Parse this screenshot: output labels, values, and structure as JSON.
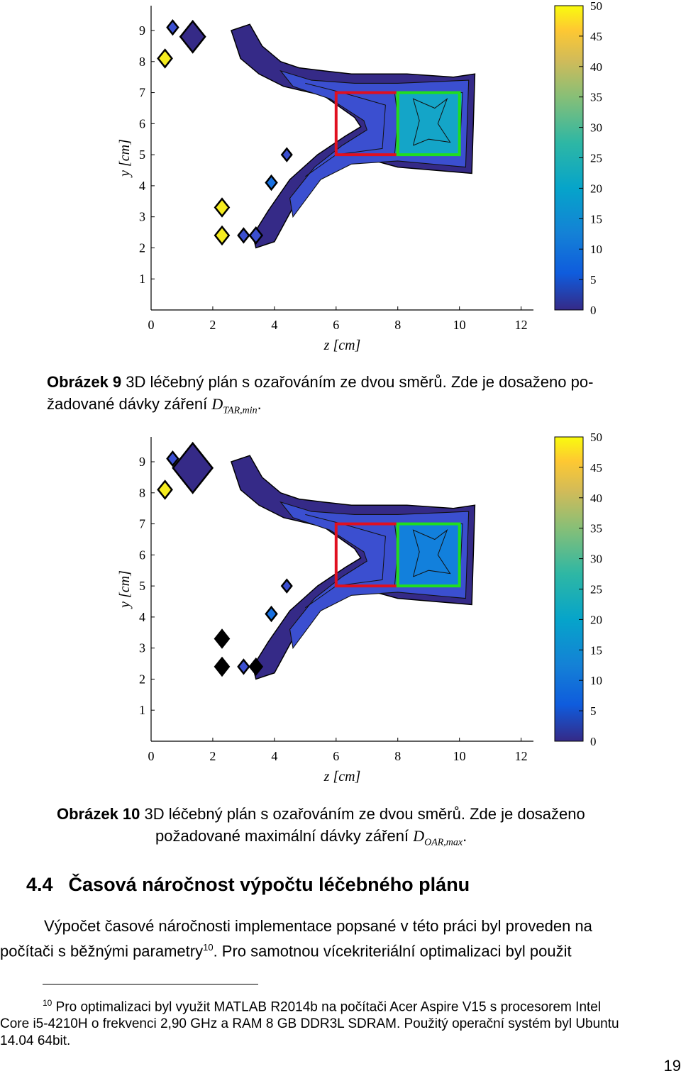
{
  "figures": [
    {
      "caption_label": "Obrázek 9",
      "caption_text_1": " 3D léčebný plán s ozařováním ze dvou směrů. Zde je dosaženo po-",
      "caption_text_2": "žadované dávky záření ",
      "caption_math_base": "D",
      "caption_math_sub": "TAR,min",
      "caption_end": ".",
      "chart_data": {
        "type": "heatmap",
        "xlabel": "z [cm]",
        "ylabel": "y [cm]",
        "xlim": [
          0,
          12.4
        ],
        "ylim": [
          0,
          9.8
        ],
        "xticks": [
          "0",
          "2",
          "4",
          "6",
          "8",
          "10",
          "12"
        ],
        "yticks": [
          "1",
          "2",
          "3",
          "4",
          "5",
          "6",
          "7",
          "8",
          "9"
        ],
        "colorbar": {
          "min": 0,
          "max": 50,
          "ticks": [
            "0",
            "5",
            "10",
            "15",
            "20",
            "25",
            "30",
            "35",
            "40",
            "45",
            "50"
          ]
        },
        "regions": [
          {
            "name": "red",
            "color": "#e01020",
            "z": [
              6,
              8
            ],
            "y": [
              5,
              7
            ]
          },
          {
            "name": "green",
            "color": "#20dd20",
            "z": [
              8,
              10
            ],
            "y": [
              5,
              7
            ]
          }
        ]
      }
    },
    {
      "caption_label": "Obrázek 10",
      "caption_text_1": " 3D léčebný plán s ozařováním ze dvou směrů. Zde je dosaženo",
      "caption_text_2": "požadované maximální dávky záření ",
      "caption_math_base": "D",
      "caption_math_sub": "OAR,max",
      "caption_end": ".",
      "chart_data": {
        "type": "heatmap",
        "xlabel": "z [cm]",
        "ylabel": "y [cm]",
        "xlim": [
          0,
          12.4
        ],
        "ylim": [
          0,
          9.8
        ],
        "xticks": [
          "0",
          "2",
          "4",
          "6",
          "8",
          "10",
          "12"
        ],
        "yticks": [
          "1",
          "2",
          "3",
          "4",
          "5",
          "6",
          "7",
          "8",
          "9"
        ],
        "colorbar": {
          "min": 0,
          "max": 50,
          "ticks": [
            "0",
            "5",
            "10",
            "15",
            "20",
            "25",
            "30",
            "35",
            "40",
            "45",
            "50"
          ]
        },
        "regions": [
          {
            "name": "red",
            "color": "#e01020",
            "z": [
              6,
              8
            ],
            "y": [
              5,
              7
            ]
          },
          {
            "name": "green",
            "color": "#20dd20",
            "z": [
              8,
              10
            ],
            "y": [
              5,
              7
            ]
          }
        ]
      }
    }
  ],
  "section": {
    "number": "4.4",
    "title": "Časová náročnost výpočtu léčebného plánu"
  },
  "paragraph": {
    "line1": "Výpočet časové náročnosti implementace popsané v této práci byl proveden na",
    "line2a": "počítači s běžnými parametry",
    "footnote_ref": "10",
    "line2b": ". Pro samotnou vícekriteriální optimalizaci byl použit"
  },
  "footnote": {
    "number": "10",
    "line1": " Pro optimalizaci byl využit MATLAB R2014b na počítači Acer Aspire V15 s procesorem Intel",
    "line2": "Core i5-4210H o frekvenci 2,90 GHz a RAM 8 GB DDR3L SDRAM. Použitý operační systém byl Ubuntu",
    "line3": "14.04 64bit."
  },
  "page_number": "19"
}
